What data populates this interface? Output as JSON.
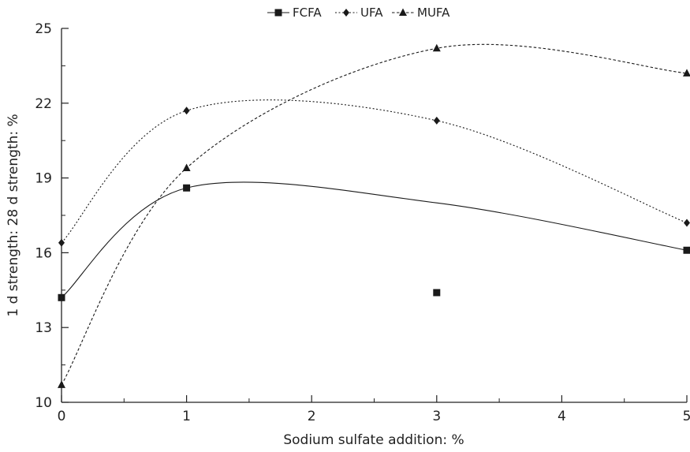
{
  "chart_data": {
    "type": "line",
    "xlabel": "Sodium sulfate addition: %",
    "ylabel": "1 d strength: 28 d strength: %",
    "xlim": [
      0,
      5
    ],
    "ylim": [
      10,
      25
    ],
    "x_ticks": [
      "0",
      "1",
      "2",
      "3",
      "4",
      "5"
    ],
    "y_ticks": [
      "10",
      "13",
      "16",
      "19",
      "22",
      "25"
    ],
    "grid": false,
    "legend_position": "top-center",
    "series": [
      {
        "name": "FCFA",
        "marker": "square",
        "line_style": "solid",
        "color": "#1a1a1a",
        "x": [
          0,
          1,
          3,
          5
        ],
        "values": [
          14.2,
          18.6,
          14.4,
          16.1
        ],
        "curve_y": [
          14.2,
          18.6,
          18.0,
          16.1
        ]
      },
      {
        "name": "UFA",
        "marker": "diamond",
        "line_style": "dotted",
        "color": "#1a1a1a",
        "x": [
          0,
          1,
          3,
          5
        ],
        "values": [
          16.4,
          21.7,
          21.3,
          17.2
        ],
        "curve_y": [
          16.4,
          21.7,
          21.3,
          17.2
        ]
      },
      {
        "name": "MUFA",
        "marker": "triangle",
        "line_style": "dashed",
        "color": "#1a1a1a",
        "x": [
          0,
          1,
          3,
          5
        ],
        "values": [
          10.7,
          19.4,
          24.2,
          23.2
        ],
        "curve_y": [
          10.7,
          19.4,
          24.2,
          23.2
        ]
      }
    ]
  }
}
